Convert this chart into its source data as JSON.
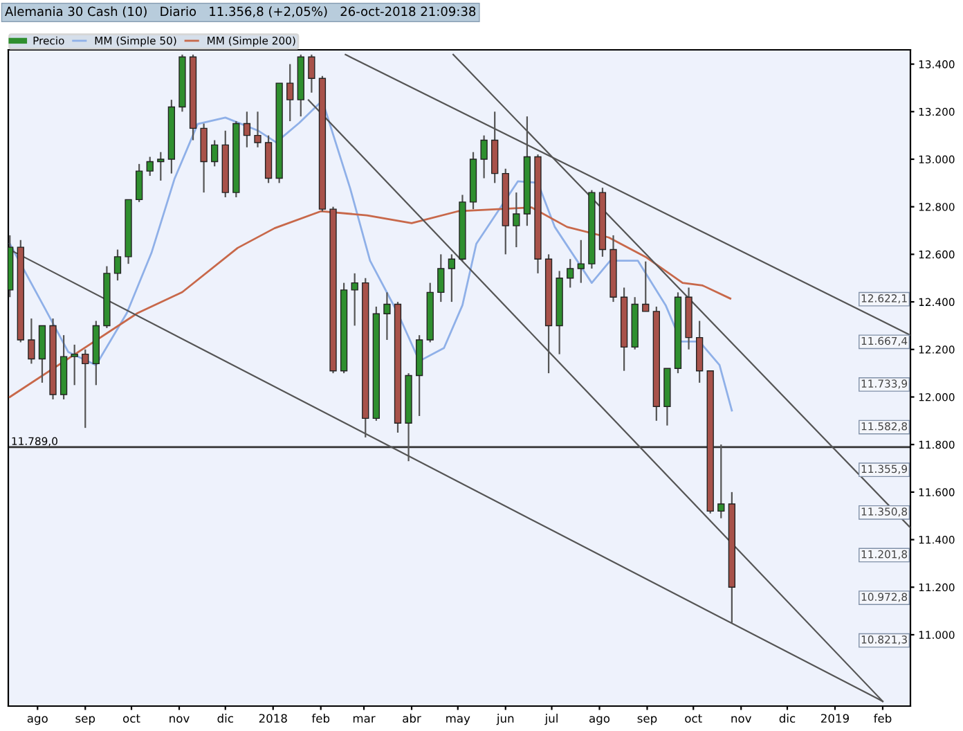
{
  "chart_data": {
    "type": "candlestick",
    "title": "Alemania 30 Cash (10)   Diario   11.356,8 (+2,05%)   26-oct-2018 21:09:38",
    "legend": "top left",
    "xlim": [
      "2017-07-13",
      "2019-02-19"
    ],
    "xticks": [
      {
        "value": "2017-08-01",
        "label": "ago"
      },
      {
        "value": "2017-09-01",
        "label": "sep"
      },
      {
        "value": "2017-10-01",
        "label": "oct"
      },
      {
        "value": "2017-11-01",
        "label": "nov"
      },
      {
        "value": "2017-12-01",
        "label": "dic"
      },
      {
        "value": "2018-01-01",
        "label": "2018"
      },
      {
        "value": "2018-02-01",
        "label": "feb"
      },
      {
        "value": "2018-03-01",
        "label": "mar"
      },
      {
        "value": "2018-04-01",
        "label": "abr"
      },
      {
        "value": "2018-05-01",
        "label": "may"
      },
      {
        "value": "2018-06-01",
        "label": "jun"
      },
      {
        "value": "2018-07-01",
        "label": "jul"
      },
      {
        "value": "2018-08-01",
        "label": "ago"
      },
      {
        "value": "2018-09-01",
        "label": "sep"
      },
      {
        "value": "2018-10-01",
        "label": "oct"
      },
      {
        "value": "2018-11-01",
        "label": "nov"
      },
      {
        "value": "2018-12-01",
        "label": "dic"
      },
      {
        "value": "2019-01-01",
        "label": "2019"
      },
      {
        "value": "2019-02-01",
        "label": "feb"
      }
    ],
    "ylim": [
      10700,
      13460
    ],
    "yticks": [
      {
        "value": 11000,
        "label": "11.000"
      },
      {
        "value": 11200,
        "label": "11.200"
      },
      {
        "value": 11400,
        "label": "11.400"
      },
      {
        "value": 11600,
        "label": "11.600"
      },
      {
        "value": 11800,
        "label": "11.800"
      },
      {
        "value": 12000,
        "label": "12.000"
      },
      {
        "value": 12200,
        "label": "12.200"
      },
      {
        "value": 12400,
        "label": "12.400"
      },
      {
        "value": 12600,
        "label": "12.600"
      },
      {
        "value": 12800,
        "label": "12.800"
      },
      {
        "value": 13000,
        "label": "13.000"
      },
      {
        "value": 13200,
        "label": "13.200"
      },
      {
        "value": 13400,
        "label": "13.400"
      }
    ],
    "ref_lines": [
      {
        "axis": "y",
        "value": 11789,
        "label": "11.789,0",
        "color": "#333333"
      }
    ],
    "annotations": [
      "12.622,1",
      "11.667,4",
      "11.733,9",
      "11.582,8",
      "11.355,9",
      "11.350,8",
      "11.201,8",
      "10.972,8",
      "10.821,3"
    ],
    "series": [
      {
        "name": "Precio",
        "x": [
          "2017-07-14",
          "2017-07-21",
          "2017-07-28",
          "2017-08-04",
          "2017-08-11",
          "2017-08-18",
          "2017-08-25",
          "2017-09-01",
          "2017-09-08",
          "2017-09-15",
          "2017-09-22",
          "2017-09-29",
          "2017-10-06",
          "2017-10-13",
          "2017-10-20",
          "2017-10-27",
          "2017-11-03",
          "2017-11-10",
          "2017-11-17",
          "2017-11-24",
          "2017-12-01",
          "2017-12-08",
          "2017-12-15",
          "2017-12-22",
          "2017-12-29",
          "2018-01-05",
          "2018-01-12",
          "2018-01-19",
          "2018-01-26",
          "2018-02-02",
          "2018-02-09",
          "2018-02-16",
          "2018-02-23",
          "2018-03-02",
          "2018-03-09",
          "2018-03-16",
          "2018-03-23",
          "2018-03-30",
          "2018-04-06",
          "2018-04-13",
          "2018-04-20",
          "2018-04-27",
          "2018-05-04",
          "2018-05-11",
          "2018-05-18",
          "2018-05-25",
          "2018-06-01",
          "2018-06-08",
          "2018-06-15",
          "2018-06-22",
          "2018-06-29",
          "2018-07-06",
          "2018-07-13",
          "2018-07-20",
          "2018-07-27",
          "2018-08-03",
          "2018-08-10",
          "2018-08-17",
          "2018-08-24",
          "2018-08-31",
          "2018-09-07",
          "2018-09-14",
          "2018-09-21",
          "2018-09-28",
          "2018-10-05",
          "2018-10-12",
          "2018-10-19",
          "2018-10-26"
        ],
        "ohlc": [
          [
            12450,
            12680,
            12420,
            12630
          ],
          [
            12630,
            12660,
            12230,
            12240
          ],
          [
            12240,
            12330,
            12140,
            12160
          ],
          [
            12160,
            12300,
            12060,
            12300
          ],
          [
            12300,
            12330,
            11990,
            12010
          ],
          [
            12010,
            12260,
            11990,
            12170
          ],
          [
            12170,
            12220,
            12050,
            12180
          ],
          [
            12180,
            12200,
            11870,
            12140
          ],
          [
            12140,
            12320,
            12050,
            12300
          ],
          [
            12300,
            12550,
            12290,
            12520
          ],
          [
            12520,
            12620,
            12490,
            12590
          ],
          [
            12590,
            12830,
            12560,
            12830
          ],
          [
            12830,
            12980,
            12820,
            12950
          ],
          [
            12950,
            13010,
            12930,
            12990
          ],
          [
            12990,
            13030,
            12910,
            13000
          ],
          [
            13000,
            13250,
            12940,
            13220
          ],
          [
            13220,
            13440,
            13200,
            13430
          ],
          [
            13430,
            13440,
            13080,
            13130
          ],
          [
            13130,
            13150,
            12860,
            12990
          ],
          [
            12990,
            13080,
            12970,
            13060
          ],
          [
            13060,
            13120,
            12840,
            12860
          ],
          [
            12860,
            13160,
            12840,
            13150
          ],
          [
            13150,
            13200,
            13050,
            13100
          ],
          [
            13100,
            13200,
            13050,
            13070
          ],
          [
            13070,
            13100,
            12900,
            12920
          ],
          [
            12920,
            13320,
            12900,
            13320
          ],
          [
            13320,
            13400,
            13160,
            13250
          ],
          [
            13250,
            13440,
            13180,
            13430
          ],
          [
            13430,
            13440,
            13280,
            13340
          ],
          [
            13340,
            13350,
            12780,
            12790
          ],
          [
            12790,
            12800,
            12100,
            12110
          ],
          [
            12110,
            12480,
            12100,
            12450
          ],
          [
            12450,
            12520,
            12300,
            12480
          ],
          [
            12480,
            12500,
            11830,
            11910
          ],
          [
            11910,
            12380,
            11900,
            12350
          ],
          [
            12350,
            12440,
            12240,
            12390
          ],
          [
            12390,
            12400,
            11850,
            11890
          ],
          [
            11890,
            12100,
            11730,
            12090
          ],
          [
            12090,
            12260,
            11920,
            12240
          ],
          [
            12240,
            12480,
            12230,
            12440
          ],
          [
            12440,
            12600,
            12400,
            12540
          ],
          [
            12540,
            12600,
            12400,
            12580
          ],
          [
            12580,
            12850,
            12570,
            12820
          ],
          [
            12820,
            13030,
            12790,
            13000
          ],
          [
            13000,
            13100,
            12920,
            13080
          ],
          [
            13080,
            13200,
            12900,
            12940
          ],
          [
            12940,
            12960,
            12600,
            12720
          ],
          [
            12720,
            12860,
            12630,
            12770
          ],
          [
            12770,
            13180,
            12720,
            13010
          ],
          [
            13010,
            13020,
            12520,
            12580
          ],
          [
            12580,
            12600,
            12100,
            12300
          ],
          [
            12300,
            12530,
            12180,
            12500
          ],
          [
            12500,
            12580,
            12460,
            12540
          ],
          [
            12540,
            12660,
            12480,
            12560
          ],
          [
            12560,
            12870,
            12540,
            12860
          ],
          [
            12860,
            12880,
            12590,
            12620
          ],
          [
            12620,
            12680,
            12400,
            12420
          ],
          [
            12420,
            12460,
            12110,
            12210
          ],
          [
            12210,
            12420,
            12200,
            12390
          ],
          [
            12390,
            12570,
            12360,
            12360
          ],
          [
            12360,
            12380,
            11900,
            11960
          ],
          [
            11960,
            12120,
            11880,
            12120
          ],
          [
            12120,
            12440,
            12100,
            12420
          ],
          [
            12420,
            12460,
            12200,
            12250
          ],
          [
            12250,
            12320,
            12060,
            12110
          ],
          [
            12110,
            12110,
            11510,
            11520
          ],
          [
            11520,
            11800,
            11490,
            11550
          ],
          [
            11550,
            11600,
            11050,
            11200
          ]
        ],
        "colors": [
          "#2f8f2f",
          "#a8524a",
          "#a8524a",
          "#2f8f2f",
          "#a8524a",
          "#2f8f2f",
          "#2f8f2f",
          "#a8524a",
          "#2f8f2f",
          "#2f8f2f",
          "#2f8f2f",
          "#2f8f2f",
          "#2f8f2f",
          "#2f8f2f",
          "#2f8f2f",
          "#2f8f2f",
          "#2f8f2f",
          "#a8524a",
          "#a8524a",
          "#2f8f2f",
          "#a8524a",
          "#2f8f2f",
          "#a8524a",
          "#a8524a",
          "#a8524a",
          "#2f8f2f",
          "#a8524a",
          "#2f8f2f",
          "#a8524a",
          "#a8524a",
          "#a8524a",
          "#2f8f2f",
          "#2f8f2f",
          "#a8524a",
          "#2f8f2f",
          "#2f8f2f",
          "#a8524a",
          "#2f8f2f",
          "#2f8f2f",
          "#2f8f2f",
          "#2f8f2f",
          "#2f8f2f",
          "#2f8f2f",
          "#2f8f2f",
          "#2f8f2f",
          "#a8524a",
          "#a8524a",
          "#2f8f2f",
          "#2f8f2f",
          "#a8524a",
          "#a8524a",
          "#2f8f2f",
          "#2f8f2f",
          "#2f8f2f",
          "#2f8f2f",
          "#a8524a",
          "#a8524a",
          "#a8524a",
          "#2f8f2f",
          "#a8524a",
          "#a8524a",
          "#2f8f2f",
          "#2f8f2f",
          "#a8524a",
          "#a8524a",
          "#a8524a",
          "#2f8f2f",
          "#a8524a"
        ]
      },
      {
        "type": "line",
        "name": "MM (Simple 50)",
        "color": "#8fb0e8",
        "x": [
          "2017-07-14",
          "2017-08-06",
          "2017-08-21",
          "2017-09-08",
          "2017-09-28",
          "2017-10-14",
          "2017-10-29",
          "2017-11-13",
          "2017-12-01",
          "2017-12-22",
          "2018-01-03",
          "2018-01-18",
          "2018-02-02",
          "2018-02-20",
          "2018-03-05",
          "2018-03-23",
          "2018-04-06",
          "2018-04-22",
          "2018-05-04",
          "2018-05-13",
          "2018-06-09",
          "2018-06-22",
          "2018-07-03",
          "2018-07-27",
          "2018-08-08",
          "2018-08-26",
          "2018-09-13",
          "2018-09-23",
          "2018-10-05",
          "2018-10-18",
          "2018-10-26"
        ],
        "values": [
          12644,
          12370,
          12189,
          12134,
          12353,
          12606,
          12918,
          13148,
          13175,
          13121,
          13071,
          13153,
          13247,
          12879,
          12573,
          12353,
          12151,
          12206,
          12386,
          12644,
          12907,
          12901,
          12715,
          12480,
          12573,
          12573,
          12386,
          12233,
          12233,
          12134,
          11943
        ]
      },
      {
        "type": "line",
        "name": "MM (Simple 200)",
        "color": "#c8684a",
        "x": [
          "2017-07-14",
          "2017-10-05",
          "2017-11-03",
          "2017-12-09",
          "2018-01-02",
          "2018-02-01",
          "2018-03-03",
          "2018-04-01",
          "2018-05-01",
          "2018-06-18",
          "2018-07-11",
          "2018-08-07",
          "2018-08-31",
          "2018-09-24",
          "2018-10-07",
          "2018-10-25"
        ],
        "values": [
          12000,
          12353,
          12441,
          12627,
          12710,
          12781,
          12764,
          12731,
          12781,
          12797,
          12715,
          12671,
          12589,
          12480,
          12469,
          12414
        ]
      },
      {
        "type": "line",
        "color": "#555555",
        "x": [
          "2017-07-15",
          "2019-02-01"
        ],
        "values": [
          12616,
          10720
        ]
      },
      {
        "type": "line",
        "color": "#555555",
        "x": [
          "2018-01-24",
          "2019-02-01"
        ],
        "values": [
          13249,
          10720
        ]
      },
      {
        "type": "line",
        "color": "#555555",
        "x": [
          "2018-04-28",
          "2019-02-19"
        ],
        "values": [
          13440,
          11450
        ]
      },
      {
        "type": "line",
        "color": "#555555",
        "x": [
          "2018-02-17",
          "2019-02-19"
        ],
        "values": [
          13440,
          12260
        ]
      }
    ]
  }
}
